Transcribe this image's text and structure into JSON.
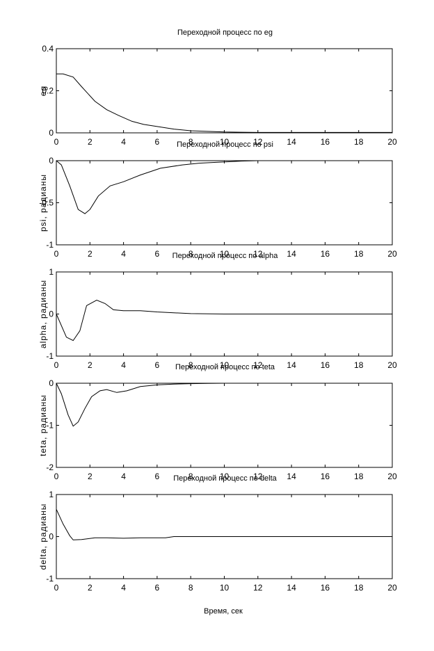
{
  "figure_xlabel": "Время, сек",
  "chart_data": [
    {
      "type": "line",
      "title": "Переходной процесс по eg",
      "ylabel": "eg",
      "xlim": [
        0,
        20
      ],
      "ylim": [
        0,
        0.4
      ],
      "xticks": [
        "0",
        "2",
        "4",
        "6",
        "8",
        "10",
        "12",
        "14",
        "16",
        "18",
        "20"
      ],
      "yticks": [
        "0",
        "0.2",
        "0.4"
      ],
      "grid": false,
      "x": [
        0,
        0.4,
        1,
        1.5,
        2.3,
        3,
        3.7,
        4.5,
        5.2,
        6,
        7,
        8,
        9,
        10,
        11,
        12,
        14,
        16,
        18,
        20
      ],
      "y": [
        0.28,
        0.28,
        0.265,
        0.22,
        0.15,
        0.11,
        0.083,
        0.055,
        0.04,
        0.03,
        0.018,
        0.01,
        0.007,
        0.004,
        0.003,
        0.002,
        0.002,
        0.002,
        0.002,
        0.002
      ]
    },
    {
      "type": "line",
      "title": "Переходной процесс по psi",
      "ylabel": "psi, радианы",
      "xlim": [
        0,
        20
      ],
      "ylim": [
        -1,
        0
      ],
      "xticks": [
        "0",
        "2",
        "4",
        "6",
        "8",
        "10",
        "12",
        "14",
        "16",
        "18",
        "20"
      ],
      "yticks": [
        "-1",
        "-0.5",
        "0"
      ],
      "grid": false,
      "x": [
        0,
        0.3,
        0.8,
        1.3,
        1.7,
        2.0,
        2.5,
        3.2,
        4.0,
        5.0,
        6.2,
        7.5,
        8.5,
        9.5,
        10.5,
        11,
        12,
        14,
        16,
        18,
        20
      ],
      "y": [
        0,
        -0.05,
        -0.3,
        -0.58,
        -0.63,
        -0.58,
        -0.42,
        -0.3,
        -0.25,
        -0.17,
        -0.09,
        -0.05,
        -0.03,
        -0.02,
        -0.01,
        -0.005,
        0,
        0,
        0,
        0,
        0
      ]
    },
    {
      "type": "line",
      "title": "Переходной процесс по alpha",
      "ylabel": "alpha, радианы",
      "xlim": [
        0,
        20
      ],
      "ylim": [
        -1,
        1
      ],
      "xticks": [
        "0",
        "2",
        "4",
        "6",
        "8",
        "10",
        "12",
        "14",
        "16",
        "18",
        "20"
      ],
      "yticks": [
        "-1",
        "0",
        "1"
      ],
      "grid": false,
      "x": [
        0,
        0.6,
        1.0,
        1.4,
        1.8,
        2.4,
        2.9,
        3.4,
        4.0,
        5.0,
        6.0,
        7.0,
        8.0,
        10,
        12,
        14,
        16,
        18,
        20
      ],
      "y": [
        0,
        -0.55,
        -0.63,
        -0.4,
        0.2,
        0.33,
        0.25,
        0.1,
        0.08,
        0.08,
        0.05,
        0.03,
        0.01,
        0,
        0,
        0,
        0,
        0,
        0
      ]
    },
    {
      "type": "line",
      "title": "Переходной процесс по teta",
      "ylabel": "teta, радианы",
      "xlim": [
        0,
        20
      ],
      "ylim": [
        -2,
        0
      ],
      "xticks": [
        "0",
        "2",
        "4",
        "6",
        "8",
        "10",
        "12",
        "14",
        "16",
        "18",
        "20"
      ],
      "yticks": [
        "-2",
        "-1",
        "0"
      ],
      "grid": false,
      "x": [
        0,
        0.3,
        0.7,
        1.0,
        1.3,
        1.7,
        2.1,
        2.6,
        3.0,
        3.6,
        4.2,
        5.0,
        6.0,
        7.0,
        8.0,
        9.0,
        10,
        12,
        14,
        16,
        18,
        20
      ],
      "y": [
        0,
        -0.25,
        -0.75,
        -1.02,
        -0.92,
        -0.6,
        -0.32,
        -0.18,
        -0.15,
        -0.22,
        -0.18,
        -0.08,
        -0.04,
        -0.02,
        -0.01,
        -0.005,
        0,
        0,
        0,
        0,
        0,
        0
      ]
    },
    {
      "type": "line",
      "title": "Переходной процесс по delta",
      "ylabel": "delta, радианы",
      "xlim": [
        0,
        20
      ],
      "ylim": [
        -1,
        1
      ],
      "xticks": [
        "0",
        "2",
        "4",
        "6",
        "8",
        "10",
        "12",
        "14",
        "16",
        "18",
        "20"
      ],
      "yticks": [
        "-1",
        "0",
        "1"
      ],
      "grid": false,
      "x": [
        0,
        0.4,
        0.8,
        1.0,
        1.5,
        2.3,
        3.0,
        4.0,
        5.0,
        6.0,
        6.5,
        7.0,
        8.0,
        10,
        12,
        14,
        16,
        18,
        20
      ],
      "y": [
        0.65,
        0.3,
        0.02,
        -0.08,
        -0.07,
        -0.03,
        -0.03,
        -0.04,
        -0.03,
        -0.03,
        -0.03,
        0,
        0,
        0,
        0,
        0,
        0,
        0,
        0
      ]
    }
  ]
}
